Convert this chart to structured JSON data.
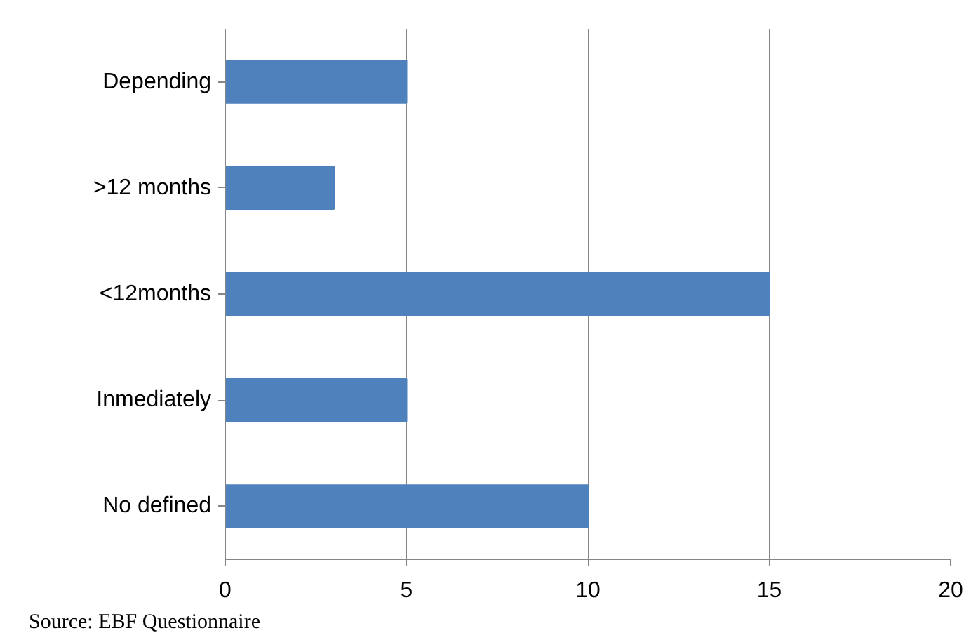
{
  "chart_data": {
    "type": "bar",
    "orientation": "horizontal",
    "categories": [
      "Depending",
      ">12 months",
      "<12months",
      "Inmediately",
      "No defined"
    ],
    "values": [
      5,
      3,
      15,
      5,
      10
    ],
    "color": "#4f81bd",
    "xlim": [
      0,
      20
    ],
    "xticks": [
      0,
      5,
      10,
      15,
      20
    ],
    "grid": "x",
    "annotations": [
      "Source: EBF Questionnaire"
    ]
  }
}
